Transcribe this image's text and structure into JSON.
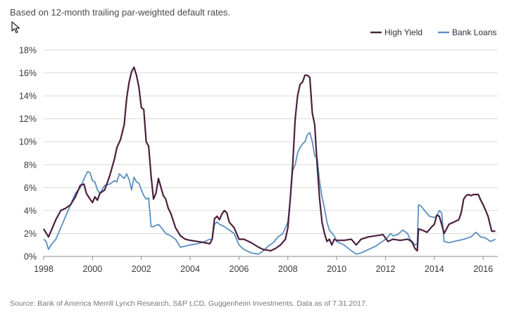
{
  "subtitle": "Based on 12-month trailing par-weighted default rates.",
  "source": "Source: Bank of America Merrill Lynch Research, S&P LCD, Guggenheim Investments. Data as of 7.31.2017.",
  "chart_data": {
    "type": "line",
    "title": "",
    "xlabel": "",
    "ylabel": "",
    "xlim": [
      1998,
      2016.6
    ],
    "ylim": [
      0,
      18
    ],
    "grid": true,
    "legend_position": "top-right",
    "x_ticks": [
      "1998",
      "2000",
      "2002",
      "2004",
      "2006",
      "2008",
      "2010",
      "2012",
      "2014",
      "2016"
    ],
    "y_ticks": [
      "0%",
      "2%",
      "4%",
      "6%",
      "8%",
      "10%",
      "12%",
      "14%",
      "16%",
      "18%"
    ],
    "series": [
      {
        "name": "High Yield",
        "color": "#4b1f3e",
        "x": [
          1998.0,
          1998.2,
          1998.3,
          1998.5,
          1998.7,
          1998.9,
          1999.1,
          1999.3,
          1999.5,
          1999.65,
          1999.75,
          1999.9,
          2000.0,
          2000.1,
          2000.2,
          2000.3,
          2000.5,
          2000.7,
          2000.9,
          2001.0,
          2001.15,
          2001.3,
          2001.4,
          2001.45,
          2001.5,
          2001.6,
          2001.7,
          2001.8,
          2001.9,
          2002.0,
          2002.1,
          2002.2,
          2002.3,
          2002.4,
          2002.5,
          2002.6,
          2002.7,
          2002.9,
          2003.0,
          2003.1,
          2003.2,
          2003.4,
          2003.6,
          2003.8,
          2004.0,
          2004.3,
          2004.6,
          2004.8,
          2004.9,
          2005.0,
          2005.1,
          2005.2,
          2005.3,
          2005.4,
          2005.5,
          2005.6,
          2005.8,
          2006.0,
          2006.2,
          2006.5,
          2006.8,
          2007.0,
          2007.3,
          2007.5,
          2007.7,
          2007.9,
          2008.0,
          2008.1,
          2008.2,
          2008.3,
          2008.4,
          2008.5,
          2008.6,
          2008.7,
          2008.8,
          2008.9,
          2009.0,
          2009.1,
          2009.2,
          2009.3,
          2009.4,
          2009.5,
          2009.6,
          2009.7,
          2009.8,
          2009.9,
          2010.0,
          2010.3,
          2010.6,
          2010.8,
          2011.0,
          2011.3,
          2011.6,
          2011.9,
          2012.0,
          2012.1,
          2012.3,
          2012.6,
          2012.9,
          2013.0,
          2013.1,
          2013.2,
          2013.3,
          2013.35,
          2013.5,
          2013.7,
          2013.9,
          2014.0,
          2014.1,
          2014.2,
          2014.3,
          2014.4,
          2014.6,
          2014.8,
          2015.0,
          2015.1,
          2015.2,
          2015.3,
          2015.4,
          2015.5,
          2015.6,
          2015.8,
          2015.9,
          2016.0,
          2016.1,
          2016.2,
          2016.35,
          2016.5
        ],
        "y": [
          2.4,
          1.7,
          2.2,
          3.2,
          4.0,
          4.2,
          4.5,
          5.2,
          6.2,
          6.3,
          5.5,
          5.0,
          4.7,
          5.2,
          4.9,
          5.5,
          5.8,
          7.0,
          8.5,
          9.5,
          10.2,
          11.5,
          13.8,
          14.5,
          15.2,
          16.1,
          16.5,
          15.8,
          14.8,
          13.0,
          12.8,
          10.0,
          9.6,
          7.0,
          5.0,
          5.5,
          6.8,
          5.3,
          5.0,
          4.2,
          3.8,
          2.5,
          1.8,
          1.5,
          1.4,
          1.3,
          1.2,
          1.1,
          1.5,
          3.3,
          3.5,
          3.2,
          3.7,
          4.0,
          3.8,
          3.0,
          2.5,
          1.5,
          1.5,
          1.2,
          0.8,
          0.6,
          0.5,
          0.7,
          1.0,
          1.5,
          2.5,
          5.0,
          8.0,
          12.0,
          14.0,
          15.0,
          15.2,
          15.8,
          15.8,
          15.6,
          12.5,
          11.5,
          8.0,
          5.0,
          3.0,
          2.0,
          1.3,
          1.5,
          1.0,
          1.5,
          1.4,
          1.4,
          1.5,
          1.0,
          1.5,
          1.7,
          1.8,
          1.9,
          1.6,
          1.3,
          1.5,
          1.4,
          1.5,
          1.4,
          1.2,
          0.7,
          0.5,
          2.4,
          2.3,
          2.1,
          2.6,
          2.8,
          3.6,
          3.5,
          2.8,
          2.0,
          2.8,
          3.0,
          3.2,
          3.8,
          5.0,
          5.3,
          5.4,
          5.3,
          5.4,
          5.4,
          4.9,
          4.5,
          4.0,
          3.5,
          2.2,
          2.2
        ]
      },
      {
        "name": "Bank Loans",
        "color": "#5b8fc1",
        "x": [
          1998.0,
          1998.1,
          1998.2,
          1998.3,
          1998.5,
          1998.7,
          1998.9,
          1999.1,
          1999.3,
          1999.5,
          1999.6,
          1999.7,
          1999.8,
          1999.9,
          2000.0,
          2000.1,
          2000.2,
          2000.3,
          2000.5,
          2000.7,
          2000.9,
          2001.0,
          2001.1,
          2001.2,
          2001.3,
          2001.4,
          2001.5,
          2001.6,
          2001.7,
          2001.8,
          2001.9,
          2002.0,
          2002.1,
          2002.2,
          2002.3,
          2002.4,
          2002.5,
          2002.7,
          2002.9,
          2003.0,
          2003.2,
          2003.4,
          2003.6,
          2003.8,
          2004.0,
          2004.3,
          2004.6,
          2004.8,
          2004.9,
          2005.0,
          2005.1,
          2005.2,
          2005.4,
          2005.6,
          2005.8,
          2006.0,
          2006.2,
          2006.5,
          2006.8,
          2007.0,
          2007.2,
          2007.4,
          2007.6,
          2007.8,
          2008.0,
          2008.1,
          2008.2,
          2008.3,
          2008.4,
          2008.5,
          2008.6,
          2008.7,
          2008.8,
          2008.9,
          2009.0,
          2009.1,
          2009.2,
          2009.3,
          2009.4,
          2009.5,
          2009.6,
          2009.7,
          2009.9,
          2010.0,
          2010.3,
          2010.6,
          2010.8,
          2011.0,
          2011.3,
          2011.6,
          2011.8,
          2012.0,
          2012.1,
          2012.2,
          2012.3,
          2012.5,
          2012.7,
          2012.9,
          2013.0,
          2013.1,
          2013.2,
          2013.3,
          2013.35,
          2013.45,
          2013.6,
          2013.8,
          2014.0,
          2014.1,
          2014.2,
          2014.3,
          2014.4,
          2014.6,
          2014.8,
          2015.0,
          2015.2,
          2015.5,
          2015.7,
          2015.9,
          2016.1,
          2016.3,
          2016.5
        ],
        "y": [
          1.5,
          1.3,
          0.6,
          1.0,
          1.5,
          2.5,
          3.5,
          4.5,
          5.5,
          6.0,
          6.5,
          7.0,
          7.4,
          7.3,
          6.6,
          6.5,
          5.8,
          5.5,
          6.2,
          6.3,
          6.6,
          6.5,
          7.2,
          7.0,
          6.8,
          7.2,
          6.7,
          5.8,
          6.9,
          6.5,
          6.4,
          5.8,
          5.3,
          5.0,
          5.1,
          2.6,
          2.6,
          2.8,
          2.3,
          2.0,
          1.8,
          1.5,
          0.8,
          0.9,
          1.0,
          1.1,
          1.3,
          1.5,
          1.5,
          2.8,
          3.0,
          2.8,
          2.6,
          2.3,
          2.0,
          1.0,
          0.6,
          0.3,
          0.2,
          0.5,
          0.9,
          1.2,
          1.7,
          2.0,
          3.0,
          5.0,
          7.5,
          8.0,
          9.0,
          9.5,
          9.8,
          10.0,
          10.6,
          10.8,
          10.0,
          8.8,
          8.6,
          6.5,
          5.2,
          4.2,
          3.0,
          2.3,
          1.8,
          1.3,
          1.0,
          0.5,
          0.2,
          0.3,
          0.6,
          0.9,
          1.2,
          1.5,
          1.7,
          2.0,
          1.8,
          1.9,
          2.3,
          2.0,
          1.5,
          1.3,
          1.0,
          1.1,
          4.5,
          4.4,
          4.0,
          3.5,
          3.4,
          3.5,
          4.0,
          3.8,
          1.3,
          1.2,
          1.3,
          1.4,
          1.5,
          1.7,
          2.1,
          1.7,
          1.6,
          1.3,
          1.5
        ]
      }
    ]
  }
}
